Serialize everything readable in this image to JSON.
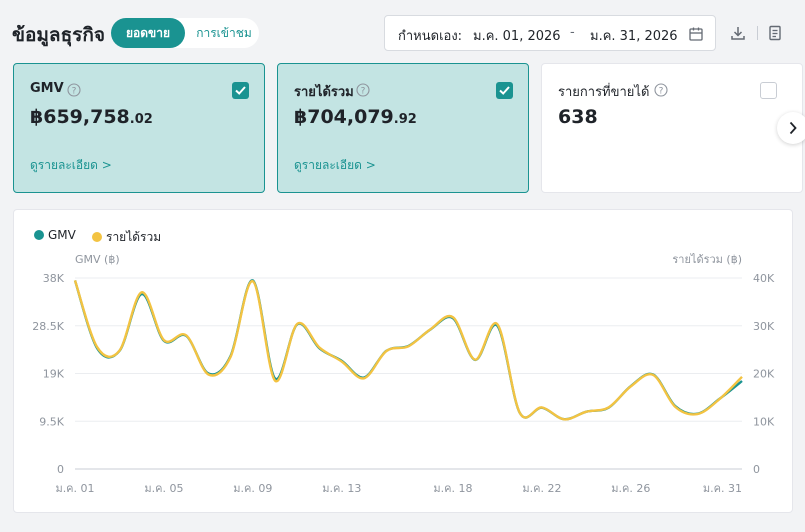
{
  "header": {
    "title": "ข้อมูลธุรกิจ",
    "tabs": [
      "ยอดขาย",
      "การเข้าชม"
    ],
    "active_tab": "ยอดขาย",
    "date_label": "กำหนดเอง:",
    "date_start": "ม.ค. 01, 2026",
    "date_sep": "-",
    "date_end": "ม.ค. 31, 2026",
    "icons": [
      "calendar-icon",
      "download-icon",
      "document-icon"
    ]
  },
  "cards": [
    {
      "title": "GMV",
      "value": "฿659,758",
      "decimal": ".02",
      "link": "ดูรายละเอียด >",
      "checked": true
    },
    {
      "title": "รายได้รวม",
      "value": "฿704,079",
      "decimal": ".92",
      "link": "ดูรายละเอียด >",
      "checked": true
    },
    {
      "title": "รายการที่ขายได้",
      "value": "638",
      "decimal": "",
      "checked": false
    }
  ],
  "colors": {
    "accent": "#1a9391",
    "gmv": "#1a9391",
    "revenue": "#f3c342",
    "card_selected_bg": "#c3e4e3"
  },
  "chart_data": {
    "type": "line",
    "legend": [
      "GMV",
      "รายได้รวม"
    ],
    "legend_position": "top-left",
    "y_left_label": "GMV (฿)",
    "y_right_label": "รายได้รวม (฿)",
    "y_left_ticks": [
      "0",
      "9.5K",
      "19K",
      "28.5K",
      "38K"
    ],
    "y_right_ticks": [
      "0",
      "10K",
      "20K",
      "30K",
      "40K"
    ],
    "y_left_range": [
      0,
      38000
    ],
    "y_right_range": [
      0,
      40000
    ],
    "x_tick_labels": [
      "ม.ค. 01",
      "ม.ค. 05",
      "ม.ค. 09",
      "ม.ค. 13",
      "ม.ค. 18",
      "ม.ค. 22",
      "ม.ค. 26",
      "ม.ค. 31"
    ],
    "x_tick_days": [
      1,
      5,
      9,
      13,
      18,
      22,
      26,
      31
    ],
    "x": [
      1,
      2,
      3,
      4,
      5,
      6,
      7,
      8,
      9,
      10,
      11,
      12,
      13,
      14,
      15,
      16,
      17,
      18,
      19,
      20,
      21,
      22,
      23,
      24,
      25,
      26,
      27,
      28,
      29,
      30,
      31
    ],
    "grid": true,
    "series": [
      {
        "name": "GMV",
        "axis": "left",
        "values": [
          37500,
          24000,
          23500,
          34800,
          25500,
          26500,
          19000,
          22500,
          37500,
          18000,
          28800,
          24000,
          21500,
          18200,
          23500,
          24500,
          27800,
          30000,
          21700,
          28500,
          11200,
          12200,
          9900,
          11400,
          12200,
          16500,
          18800,
          12500,
          11000,
          14000,
          17500
        ]
      },
      {
        "name": "รายได้รวม",
        "axis": "right",
        "values": [
          39500,
          25500,
          24800,
          37000,
          27000,
          28000,
          19800,
          23500,
          39300,
          18500,
          30400,
          25400,
          22500,
          19000,
          24700,
          25700,
          29300,
          31800,
          22900,
          30300,
          11800,
          12900,
          10400,
          12000,
          12900,
          17300,
          19700,
          13000,
          11500,
          14700,
          19300
        ]
      }
    ]
  }
}
